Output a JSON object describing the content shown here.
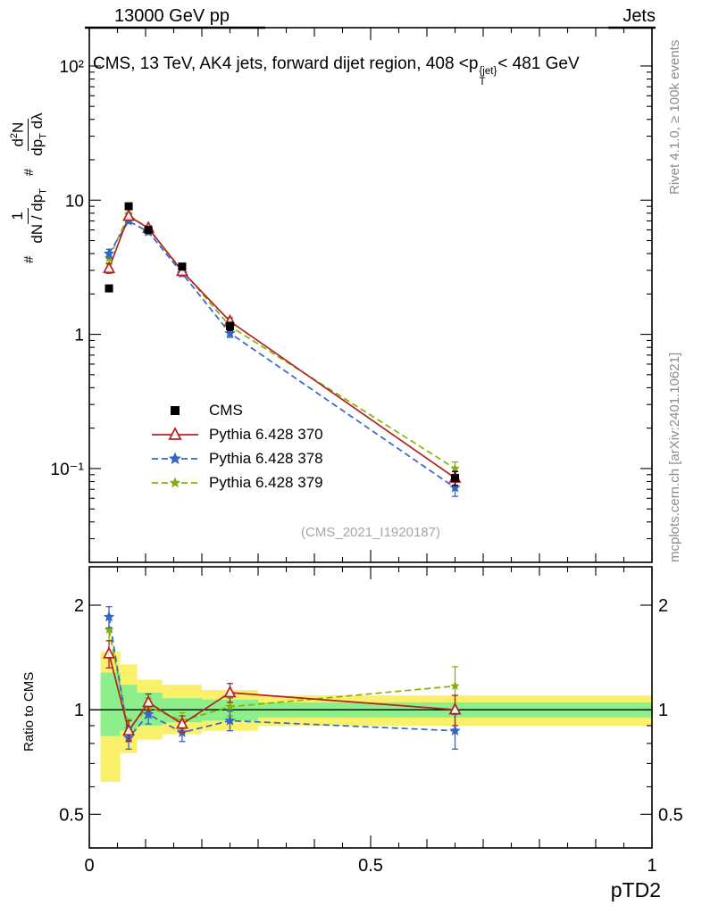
{
  "header": {
    "left": "13000 GeV pp",
    "right": "Jets"
  },
  "title": {
    "prefix": "CMS, 13 TeV, AK4 jets, forward dijet region, 408 <p",
    "sup": "{jet}",
    "sub": "T",
    "suffix": "< 481 GeV"
  },
  "ylabel": {
    "hash1": "#",
    "f1_num": "1",
    "f1_den_a": "dN / dp",
    "f1_den_sub": "T",
    "hash2": "#",
    "f2_num_a": "d",
    "f2_num_sup": "2",
    "f2_num_b": "N",
    "f2_den_a": "dp",
    "f2_den_sub": "T",
    "f2_den_b": " dλ"
  },
  "ratio_ylabel": "Ratio to CMS",
  "xlabel": "pTD2",
  "watermark": "(CMS_2021_I1920187)",
  "side_notes": {
    "top_right": "Rivet 4.1.0, ≥ 100k events",
    "bottom_right": "mcplots.cern.ch [arXiv:2401.10621]"
  },
  "chart_data": {
    "type": "line",
    "title": "CMS, 13 TeV, AK4 jets, forward dijet region, 408 <pT{jet}< 481 GeV",
    "xlabel": "pTD2",
    "ylabel": "# 1/(dN/dpT) d2N/(dpT dλ)",
    "ratio_label": "Ratio to CMS",
    "x_scale": "linear",
    "y_scale": "log",
    "grid": false,
    "legend_position": "center-left",
    "xlim": [
      0,
      1
    ],
    "main_ylim": [
      0.02,
      193
    ],
    "ratio_ylim": [
      0.4,
      2.58
    ],
    "x": [
      0.035,
      0.07,
      0.105,
      0.165,
      0.25,
      0.65
    ],
    "xticks": [
      {
        "v": 0,
        "label": "0"
      },
      {
        "v": 0.5,
        "label": "0.5"
      },
      {
        "v": 1,
        "label": "1"
      }
    ],
    "main_yticks": [
      {
        "v": 100,
        "label": "10²"
      },
      {
        "v": 10,
        "label": "10"
      },
      {
        "v": 1,
        "label": "1"
      },
      {
        "v": 0.1,
        "label": "10⁻¹"
      }
    ],
    "ratio_yticks": [
      {
        "v": 2,
        "label": "2"
      },
      {
        "v": 1,
        "label": "1"
      },
      {
        "v": 0.5,
        "label": "0.5"
      }
    ],
    "ratio_yticks_minor": [
      0.4,
      0.6,
      0.7,
      0.8,
      0.9
    ],
    "series": [
      {
        "name": "CMS",
        "marker": "square",
        "size": 9,
        "color": "#000000",
        "line": "none",
        "values": [
          2.2,
          9.0,
          6.0,
          3.2,
          1.15,
          0.085
        ],
        "errors": [
          0.12,
          0.4,
          0.3,
          0.18,
          0.08,
          0.01
        ]
      },
      {
        "name": "Pythia 6.428 370",
        "marker": "triangle-open",
        "size": 9,
        "color": "#b22222",
        "line": "solid",
        "values": [
          3.1,
          7.6,
          6.2,
          2.95,
          1.25,
          0.085
        ],
        "errors": [
          0.25,
          0.3,
          0.25,
          0.15,
          0.08,
          0.01
        ],
        "ratio": [
          1.45,
          0.87,
          1.05,
          0.91,
          1.12,
          1.0
        ],
        "ratio_errors": [
          0.13,
          0.06,
          0.06,
          0.05,
          0.07,
          0.1
        ]
      },
      {
        "name": "Pythia 6.428 378",
        "marker": "star",
        "size": 6.5,
        "color": "#3366cc",
        "line": "dashed",
        "values": [
          4.0,
          7.0,
          5.8,
          2.85,
          1.02,
          0.072
        ],
        "errors": [
          0.3,
          0.3,
          0.25,
          0.15,
          0.07,
          0.01
        ],
        "ratio": [
          1.85,
          0.83,
          0.97,
          0.86,
          0.93,
          0.87
        ],
        "ratio_errors": [
          0.13,
          0.06,
          0.06,
          0.05,
          0.06,
          0.1
        ]
      },
      {
        "name": "Pythia 6.428 379",
        "marker": "star",
        "size": 5.5,
        "color": "#85b200",
        "line": "dashed",
        "values": [
          3.7,
          7.8,
          6.1,
          3.0,
          1.15,
          0.1
        ],
        "errors": [
          0.3,
          0.3,
          0.25,
          0.15,
          0.07,
          0.012
        ],
        "ratio": [
          1.7,
          0.88,
          1.02,
          0.93,
          1.02,
          1.17
        ],
        "ratio_errors": [
          0.12,
          0.06,
          0.06,
          0.05,
          0.06,
          0.16
        ]
      }
    ],
    "ratio_bands": [
      {
        "x": [
          0.02,
          0.055
        ],
        "yellow": [
          0.62,
          1.47
        ],
        "green": [
          0.84,
          1.28
        ]
      },
      {
        "x": [
          0.055,
          0.085
        ],
        "yellow": [
          0.75,
          1.35
        ],
        "green": [
          0.87,
          1.18
        ]
      },
      {
        "x": [
          0.085,
          0.13
        ],
        "yellow": [
          0.82,
          1.22
        ],
        "green": [
          0.9,
          1.12
        ]
      },
      {
        "x": [
          0.13,
          0.2
        ],
        "yellow": [
          0.85,
          1.18
        ],
        "green": [
          0.92,
          1.08
        ]
      },
      {
        "x": [
          0.2,
          0.3
        ],
        "yellow": [
          0.87,
          1.14
        ],
        "green": [
          0.93,
          1.07
        ]
      },
      {
        "x": [
          0.3,
          1.0
        ],
        "yellow": [
          0.9,
          1.1
        ],
        "green": [
          0.95,
          1.05
        ]
      }
    ],
    "colors": {
      "band_yellow": "#fbf06a",
      "band_green": "#8cef8c",
      "ref_line": "#000000"
    }
  }
}
